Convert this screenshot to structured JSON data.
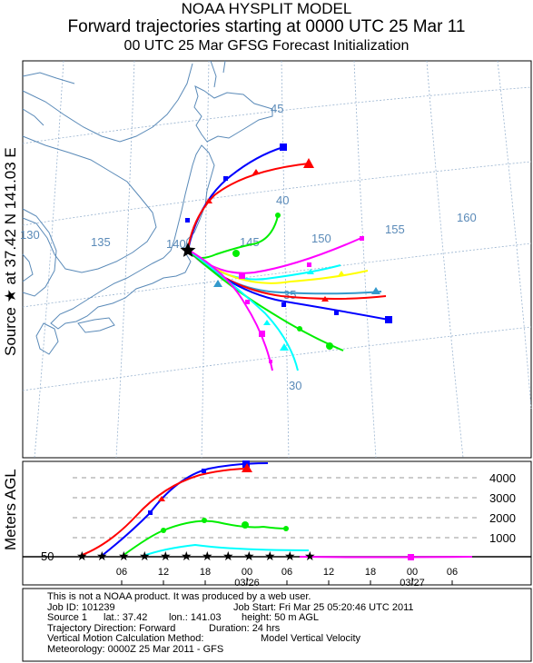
{
  "header": {
    "title": "NOAA HYSPLIT MODEL",
    "subtitle": "Forward trajectories starting at 0000 UTC 25 Mar 11",
    "subtitle2": "00 UTC 25 Mar    GFSG  Forecast Initialization"
  },
  "source_label": "Source ★ at   37.42 N  141.03 E",
  "map": {
    "lon_labels": [
      "130",
      "135",
      "140",
      "145",
      "150",
      "155",
      "160"
    ],
    "lat_labels": [
      "45",
      "40",
      "35",
      "30"
    ]
  },
  "height_panel": {
    "ylabel": "Meters AGL",
    "y_ticks": [
      "4000",
      "3000",
      "2000",
      "1000"
    ],
    "source_height": "50",
    "x_ticks": [
      "06",
      "12",
      "18",
      "00",
      "06",
      "12",
      "18",
      "00",
      "06"
    ],
    "date_labels": [
      "03/26",
      "03/27"
    ]
  },
  "trajectories": [
    {
      "color": "#0000ff",
      "marker": "square"
    },
    {
      "color": "#ff0000",
      "marker": "triangle"
    },
    {
      "color": "#00ee00",
      "marker": "circle"
    },
    {
      "color": "#00ffff",
      "marker": "triangle"
    },
    {
      "color": "#ff00ff",
      "marker": "square"
    },
    {
      "color": "#ffff00",
      "marker": "triangle"
    },
    {
      "color": "#3399cc",
      "marker": "triangle"
    }
  ],
  "info": {
    "line1": "This is not a NOAA product. It was produced by a web user.",
    "job_id": "Job ID: 101239",
    "job_start": "Job Start: Fri Mar 25 05:20:46 UTC 2011",
    "source": "Source 1",
    "lat": "lat.: 37.42",
    "lon": "lon.: 141.03",
    "height": "height: 50 m AGL",
    "direction": "Trajectory Direction: Forward",
    "duration": "Duration: 24 hrs",
    "vertical": "Vertical Motion Calculation Method:",
    "vertical_value": "Model Vertical Velocity",
    "meteorology": "Meteorology: 0000Z 25 Mar 2011 - GFS"
  }
}
